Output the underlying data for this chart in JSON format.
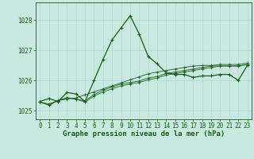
{
  "title": "Graphe pression niveau de la mer (hPa)",
  "bg_color": "#c8e8e0",
  "grid_color": "#b0d8d0",
  "line_color": "#1a5c1a",
  "xlim": [
    -0.5,
    23.5
  ],
  "ylim": [
    1024.7,
    1028.6
  ],
  "yticks": [
    1025,
    1026,
    1027,
    1028
  ],
  "xticks": [
    0,
    1,
    2,
    3,
    4,
    5,
    6,
    7,
    8,
    9,
    10,
    11,
    12,
    13,
    14,
    15,
    16,
    17,
    18,
    19,
    20,
    21,
    22,
    23
  ],
  "series": [
    [
      1025.3,
      1025.4,
      1025.3,
      1025.6,
      1025.55,
      1025.3,
      1026.0,
      1026.7,
      1027.35,
      1027.75,
      1028.15,
      1027.55,
      1026.8,
      1026.55,
      1026.25,
      1026.2,
      1026.2,
      1026.1,
      1026.15,
      1026.15,
      1026.2,
      1026.2,
      1026.0,
      1026.5
    ],
    [
      1025.28,
      1025.22,
      1025.33,
      1025.38,
      1025.42,
      1025.52,
      1025.62,
      1025.72,
      1025.82,
      1025.92,
      1026.02,
      1026.12,
      1026.22,
      1026.28,
      1026.33,
      1026.38,
      1026.43,
      1026.48,
      1026.5,
      1026.5,
      1026.53,
      1026.53,
      1026.53,
      1026.58
    ],
    [
      1025.28,
      1025.18,
      1025.33,
      1025.42,
      1025.38,
      1025.28,
      1025.48,
      1025.62,
      1025.72,
      1025.82,
      1025.88,
      1025.93,
      1026.02,
      1026.08,
      1026.18,
      1026.23,
      1026.28,
      1026.33,
      1026.38,
      1026.43,
      1026.48,
      1026.48,
      1026.48,
      1026.53
    ],
    [
      1025.28,
      1025.18,
      1025.33,
      1025.43,
      1025.38,
      1025.32,
      1025.53,
      1025.68,
      1025.78,
      1025.88,
      1025.93,
      1025.98,
      1026.08,
      1026.13,
      1026.23,
      1026.28,
      1026.33,
      1026.38,
      1026.43,
      1026.48,
      1026.48,
      1026.48,
      1026.48,
      1026.53
    ]
  ],
  "marker": "+",
  "marker_size": 3.5,
  "line_width": 0.9,
  "tick_fontsize": 5.5,
  "title_fontsize": 6.5,
  "fig_width": 3.2,
  "fig_height": 2.0,
  "dpi": 100
}
